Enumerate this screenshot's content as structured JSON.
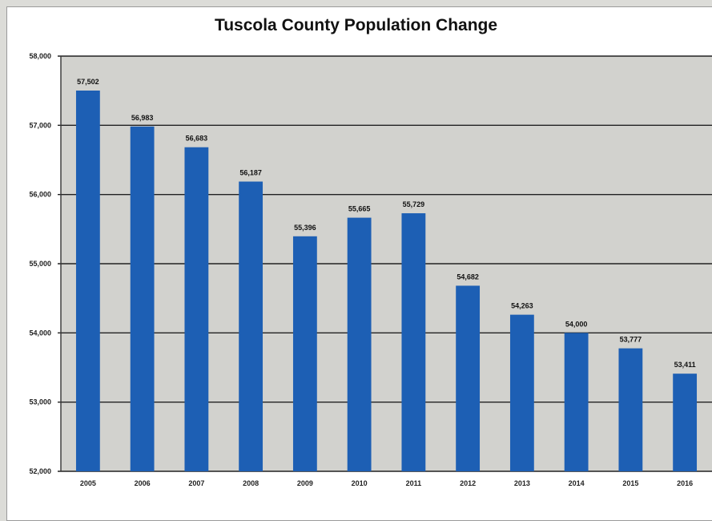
{
  "chart_data": {
    "type": "bar",
    "title": "Tuscola County Population Change",
    "xlabel": "",
    "ylabel": "",
    "categories": [
      "2005",
      "2006",
      "2007",
      "2008",
      "2009",
      "2010",
      "2011",
      "2012",
      "2013",
      "2014",
      "2015",
      "2016"
    ],
    "values": [
      57502,
      56983,
      56683,
      56187,
      55396,
      55665,
      55729,
      54682,
      54263,
      54000,
      53777,
      53411
    ],
    "data_labels": [
      "57,502",
      "56,983",
      "56,683",
      "56,187",
      "55,396",
      "55,665",
      "55,729",
      "54,682",
      "54,263",
      "54,000",
      "53,777",
      "53,411"
    ],
    "ylim": [
      52000,
      58000
    ],
    "yticks": [
      52000,
      53000,
      54000,
      55000,
      56000,
      57000,
      58000
    ],
    "ytick_labels": [
      "52,000",
      "53,000",
      "54,000",
      "55,000",
      "56,000",
      "57,000",
      "58,000"
    ],
    "grid": true,
    "colors": {
      "bar": "#1d5fb4",
      "plot_bg": "#d2d2ce",
      "grid": "#222222"
    }
  }
}
